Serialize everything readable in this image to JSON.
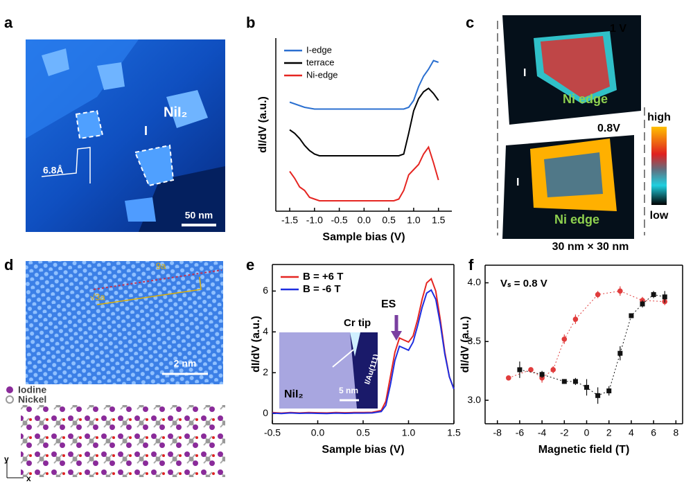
{
  "panel_labels": [
    "a",
    "b",
    "c",
    "d",
    "e",
    "f"
  ],
  "panel_a": {
    "material": "NiI₂",
    "edge": "I",
    "step": "6.8Å",
    "scale": "50 nm"
  },
  "panel_c": {
    "bias_top": "1 V",
    "bias_bottom": "0.8V",
    "edge_top": "I",
    "edge_bottom": "I",
    "ni_top": "Ni edge",
    "ni_bottom": "Ni edge",
    "high": "high",
    "low": "low",
    "size": "30 nm × 30 nm"
  },
  "panel_d": {
    "period": "9a",
    "lattice": "√3a",
    "scale": "2 nm",
    "legend": [
      "Iodine",
      "Nickel"
    ],
    "axis_y": "y",
    "axis_x": "x"
  },
  "chart_data": [
    {
      "type": "line",
      "x_label": "Sample bias (V)",
      "y_label": "dI/dV (a.u.)",
      "legend": "upper left",
      "x": [
        -1.5,
        -1.4,
        -1.3,
        -1.2,
        -1.1,
        -1.0,
        -0.9,
        -0.8,
        -0.7,
        -0.6,
        -0.5,
        -0.4,
        -0.3,
        -0.2,
        -0.1,
        0,
        0.1,
        0.2,
        0.3,
        0.4,
        0.5,
        0.6,
        0.7,
        0.8,
        0.9,
        1.0,
        1.1,
        1.2,
        1.3,
        1.4,
        1.5
      ],
      "xlim": [
        -1.78,
        1.77
      ],
      "xticks": [
        -1.5,
        {
          "value": -1,
          "label": "-1.0"
        },
        -0.5,
        {
          "value": 0,
          "label": "0.0"
        },
        0.5,
        {
          "value": 1,
          "label": "1.0"
        },
        1.5
      ],
      "ylim": [
        0,
        1
      ],
      "series": [
        {
          "name": "I-edge",
          "color": "#2a6fd0",
          "values": [
            0.63,
            0.62,
            0.61,
            0.6,
            0.595,
            0.59,
            0.59,
            0.59,
            0.59,
            0.59,
            0.59,
            0.59,
            0.59,
            0.59,
            0.59,
            0.59,
            0.59,
            0.59,
            0.59,
            0.59,
            0.59,
            0.59,
            0.59,
            0.59,
            0.6,
            0.64,
            0.72,
            0.78,
            0.82,
            0.87,
            0.86
          ]
        },
        {
          "name": "terrace",
          "color": "#000000",
          "values": [
            0.47,
            0.45,
            0.42,
            0.38,
            0.35,
            0.33,
            0.32,
            0.32,
            0.32,
            0.32,
            0.32,
            0.32,
            0.32,
            0.32,
            0.32,
            0.32,
            0.32,
            0.32,
            0.32,
            0.32,
            0.32,
            0.32,
            0.32,
            0.33,
            0.45,
            0.58,
            0.65,
            0.69,
            0.71,
            0.68,
            0.64
          ]
        },
        {
          "name": "Ni-edge",
          "color": "#e52521",
          "values": [
            0.23,
            0.19,
            0.14,
            0.12,
            0.08,
            0.07,
            0.06,
            0.06,
            0.06,
            0.06,
            0.06,
            0.06,
            0.06,
            0.06,
            0.06,
            0.06,
            0.06,
            0.06,
            0.06,
            0.06,
            0.06,
            0.06,
            0.07,
            0.12,
            0.21,
            0.24,
            0.27,
            0.33,
            0.37,
            0.28,
            0.18
          ]
        }
      ]
    },
    {
      "type": "line",
      "x_label": "Sample bias (V)",
      "y_label": "dI/dV (a.u.)",
      "legend": "upper left",
      "x": [
        -0.5,
        -0.4,
        -0.3,
        -0.2,
        -0.1,
        0,
        0.1,
        0.2,
        0.3,
        0.4,
        0.5,
        0.6,
        0.7,
        0.75,
        0.8,
        0.85,
        0.9,
        0.95,
        1.0,
        1.05,
        1.1,
        1.15,
        1.2,
        1.25,
        1.3,
        1.35,
        1.4,
        1.45,
        1.5
      ],
      "xlim": [
        -0.5,
        1.5
      ],
      "xticks": [
        -0.5,
        {
          "value": 0,
          "label": "0.0"
        },
        0.5,
        {
          "value": 1,
          "label": "1.0"
        },
        1.5
      ],
      "ylim": [
        -0.5,
        7.3
      ],
      "yticks": [
        0,
        2,
        4,
        6
      ],
      "annotation": "ES",
      "inset": {
        "tip": "Cr tip",
        "substrate": "I/Au(111)",
        "scale": "5 nm",
        "material": "NiI₂"
      },
      "series": [
        {
          "name": "B = +6 T",
          "color": "#e52521",
          "values": [
            0.05,
            0.02,
            0.05,
            0.03,
            0.05,
            0.04,
            0.03,
            0.05,
            0.04,
            0.05,
            0.05,
            0.06,
            0.15,
            0.6,
            1.8,
            3.0,
            3.7,
            3.6,
            3.5,
            3.8,
            4.6,
            5.6,
            6.4,
            6.6,
            6.0,
            4.6,
            3.0,
            1.8,
            1.2
          ]
        },
        {
          "name": "B = -6 T",
          "color": "#1d2ee0",
          "values": [
            0.02,
            0.0,
            0.03,
            0.01,
            0.02,
            0.01,
            0.0,
            0.02,
            0.01,
            0.02,
            0.02,
            0.03,
            0.1,
            0.4,
            1.4,
            2.6,
            3.3,
            3.2,
            3.1,
            3.5,
            4.3,
            5.2,
            5.9,
            6.05,
            5.6,
            4.4,
            2.9,
            1.8,
            1.2
          ]
        }
      ]
    },
    {
      "type": "scatter",
      "x_label": "Magnetic field (T)",
      "y_label": "dI/dV (a.u.)",
      "annotation": "Vₛ = 0.8 V",
      "xlim": [
        -9.1,
        8.6
      ],
      "xticks": [
        -8,
        -6,
        -4,
        -2,
        0,
        2,
        4,
        6,
        8
      ],
      "ylim": [
        2.8,
        4.15
      ],
      "yticks": [
        {
          "value": 3,
          "label": "3.0"
        },
        3.5,
        {
          "value": 4,
          "label": "4.0"
        }
      ],
      "series": [
        {
          "color": "#e03c3c",
          "marker": "circle",
          "x": [
            -7,
            -5,
            -4,
            -3,
            -2,
            -1,
            1,
            3,
            5,
            7
          ],
          "values": [
            3.19,
            3.26,
            3.19,
            3.26,
            3.52,
            3.69,
            3.9,
            3.93,
            3.85,
            3.84
          ],
          "errors": [
            0.02,
            0.02,
            0.04,
            0.03,
            0.04,
            0.04,
            0.03,
            0.04,
            0.03,
            0.03
          ]
        },
        {
          "color": "#111111",
          "marker": "square",
          "x": [
            -6,
            -4,
            -2,
            -1,
            0,
            1,
            2,
            3,
            4,
            5,
            6,
            7
          ],
          "values": [
            3.26,
            3.22,
            3.16,
            3.16,
            3.11,
            3.04,
            3.08,
            3.4,
            3.72,
            3.82,
            3.9,
            3.88
          ],
          "errors": [
            0.07,
            0.03,
            0.02,
            0.03,
            0.07,
            0.07,
            0.04,
            0.06,
            0.02,
            0.03,
            0.03,
            0.05
          ]
        }
      ]
    }
  ]
}
